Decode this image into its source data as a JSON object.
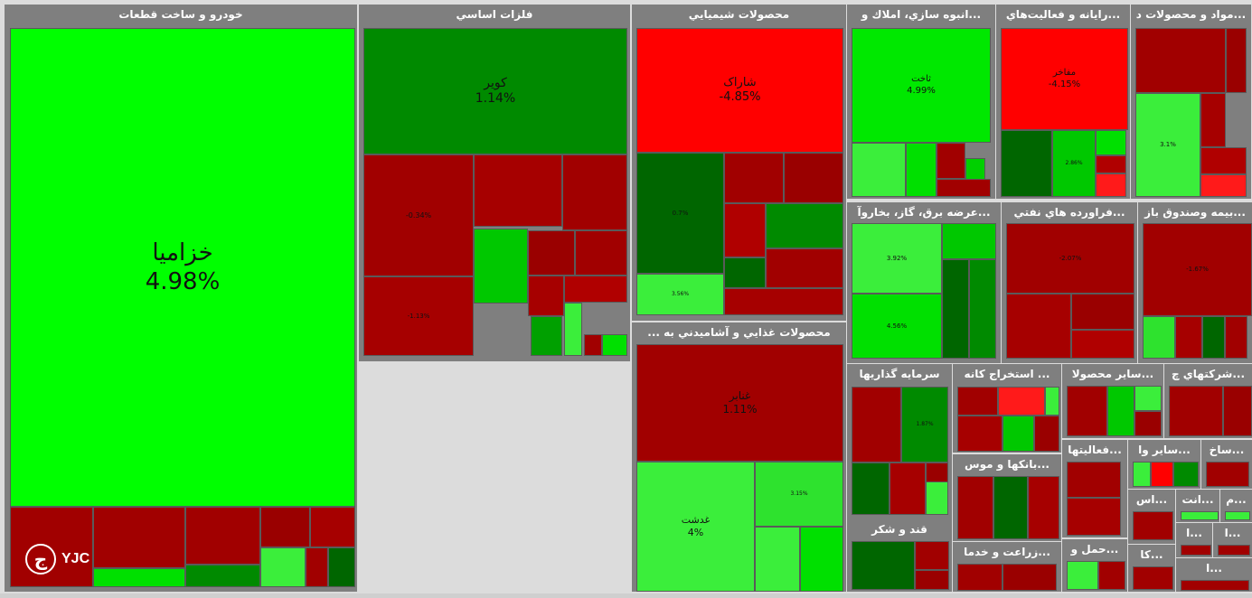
{
  "chart_data": {
    "type": "treemap",
    "sectors": [
      {
        "title": "خودرو و ساخت قطعات",
        "tiles": [
          {
            "name": "خزامیا",
            "value": 4.98,
            "color": "#00ff00"
          },
          {
            "name": "",
            "value": null,
            "color": "#a10000"
          },
          {
            "name": "",
            "value": null,
            "color": "#a10000"
          },
          {
            "name": "",
            "value": null,
            "color": "#a10000"
          },
          {
            "name": "",
            "value": null,
            "color": "#9a0000"
          },
          {
            "name": "",
            "value": null,
            "color": "#a60000"
          },
          {
            "name": "",
            "value": null,
            "color": "#00e000"
          },
          {
            "name": "",
            "value": null,
            "color": "#008a00"
          },
          {
            "name": "",
            "value": null,
            "color": "#3bee3b"
          },
          {
            "name": "",
            "value": null,
            "color": "#a10000"
          },
          {
            "name": "",
            "value": null,
            "color": "#006600"
          }
        ]
      },
      {
        "title": "فلزات اساسي",
        "tiles": [
          {
            "name": "کویر",
            "value": 1.14,
            "color": "#008a00"
          },
          {
            "name": "",
            "value": -0.34,
            "color": "#a10000"
          },
          {
            "name": "",
            "value": null,
            "color": "#a60000"
          },
          {
            "name": "",
            "value": null,
            "color": "#a10000"
          },
          {
            "name": "",
            "value": -1.13,
            "color": "#a60000"
          },
          {
            "name": "",
            "value": null,
            "color": "#00c800"
          },
          {
            "name": "",
            "value": null,
            "color": "#9a0000"
          },
          {
            "name": "",
            "value": null,
            "color": "#a10000"
          },
          {
            "name": "",
            "value": null,
            "color": "#a60000"
          },
          {
            "name": "",
            "value": null,
            "color": "#b00000"
          },
          {
            "name": "",
            "value": null,
            "color": "#00a000"
          },
          {
            "name": "",
            "value": null,
            "color": "#3bee3b"
          },
          {
            "name": "",
            "value": null,
            "color": "#a10000"
          },
          {
            "name": "",
            "value": null,
            "color": "#00e000"
          }
        ]
      },
      {
        "title": "محصولات شيميايي",
        "tiles": [
          {
            "name": "شاراک",
            "value": -4.85,
            "color": "#ff0000"
          },
          {
            "name": "",
            "value": 0.7,
            "color": "#006600"
          },
          {
            "name": "",
            "value": 3.56,
            "color": "#3bee3b"
          },
          {
            "name": "",
            "value": null,
            "color": "#a10000"
          },
          {
            "name": "",
            "value": null,
            "color": "#9a0000"
          },
          {
            "name": "",
            "value": null,
            "color": "#b00000"
          },
          {
            "name": "",
            "value": null,
            "color": "#006600"
          },
          {
            "name": "",
            "value": null,
            "color": "#008a00"
          },
          {
            "name": "",
            "value": null,
            "color": "#a10000"
          },
          {
            "name": "",
            "value": null,
            "color": "#a60000"
          }
        ]
      },
      {
        "title": "محصولات غذايي و آشاميدني به ...",
        "tiles": [
          {
            "name": "غنابر",
            "value": 1.11,
            "color": "#a10000"
          },
          {
            "name": "غدشت",
            "value": 4,
            "color": "#3bee3b"
          },
          {
            "name": "",
            "value": 3.15,
            "color": "#2ee22e"
          },
          {
            "name": "",
            "value": null,
            "color": "#3bee3b"
          },
          {
            "name": "",
            "value": null,
            "color": "#00e000"
          }
        ]
      },
      {
        "title": "...انبوه سازي، املاك و",
        "tiles": [
          {
            "name": "ثاخت",
            "value": 4.99,
            "color": "#00e800"
          },
          {
            "name": "",
            "value": null,
            "color": "#3bee3b"
          },
          {
            "name": "",
            "value": null,
            "color": "#00e000"
          },
          {
            "name": "",
            "value": null,
            "color": "#a10000"
          },
          {
            "name": "",
            "value": null,
            "color": "#00d000"
          },
          {
            "name": "",
            "value": null,
            "color": "#a10000"
          }
        ]
      },
      {
        "title": "...رايانه و فعاليت‌هاي",
        "tiles": [
          {
            "name": "مفاخر",
            "value": -4.15,
            "color": "#ff0000"
          },
          {
            "name": "",
            "value": null,
            "color": "#006600"
          },
          {
            "name": "",
            "value": 2.86,
            "color": "#00c800"
          },
          {
            "name": "",
            "value": null,
            "color": "#00e000"
          },
          {
            "name": "",
            "value": null,
            "color": "#b00000"
          },
          {
            "name": "",
            "value": null,
            "color": "#ff1a1a"
          }
        ]
      },
      {
        "title": "...مواد و محصولات د",
        "tiles": [
          {
            "name": "",
            "value": null,
            "color": "#a10000"
          },
          {
            "name": "",
            "value": 3.1,
            "color": "#3bee3b"
          },
          {
            "name": "",
            "value": null,
            "color": "#a60000"
          },
          {
            "name": "",
            "value": null,
            "color": "#9a0000"
          },
          {
            "name": "",
            "value": null,
            "color": "#b00000"
          },
          {
            "name": "",
            "value": null,
            "color": "#ff1a1a"
          }
        ]
      },
      {
        "title": "...عرضه برق، گاز، بخاروآ",
        "tiles": [
          {
            "name": "",
            "value": 3.92,
            "color": "#3bee3b"
          },
          {
            "name": "",
            "value": 4.56,
            "color": "#00e000"
          },
          {
            "name": "",
            "value": null,
            "color": "#00c800"
          },
          {
            "name": "",
            "value": null,
            "color": "#006600"
          },
          {
            "name": "",
            "value": null,
            "color": "#008a00"
          }
        ]
      },
      {
        "title": "...فراورده هاي نفتي",
        "tiles": [
          {
            "name": "",
            "value": -2.07,
            "color": "#a10000"
          },
          {
            "name": "",
            "value": null,
            "color": "#a60000"
          },
          {
            "name": "",
            "value": null,
            "color": "#9a0000"
          },
          {
            "name": "",
            "value": null,
            "color": "#b00000"
          }
        ]
      },
      {
        "title": "...بيمه وصندوق باز",
        "tiles": [
          {
            "name": "",
            "value": -1.67,
            "color": "#a10000"
          },
          {
            "name": "",
            "value": null,
            "color": "#2ee22e"
          },
          {
            "name": "",
            "value": null,
            "color": "#a60000"
          },
          {
            "name": "",
            "value": null,
            "color": "#006600"
          },
          {
            "name": "",
            "value": null,
            "color": "#a10000"
          }
        ]
      },
      {
        "title": "سرمايه گذاريها",
        "tiles": [
          {
            "name": "",
            "value": null,
            "color": "#a10000"
          },
          {
            "name": "",
            "value": 1.87,
            "color": "#008a00"
          },
          {
            "name": "",
            "value": null,
            "color": "#006600"
          },
          {
            "name": "",
            "value": null,
            "color": "#a60000"
          },
          {
            "name": "",
            "value": null,
            "color": "#9a0000"
          },
          {
            "name": "",
            "value": null,
            "color": "#3bee3b"
          }
        ]
      },
      {
        "title": "... استخراج كانه",
        "tiles": [
          {
            "name": "",
            "value": null,
            "color": "#a10000"
          },
          {
            "name": "",
            "value": null,
            "color": "#ff1a1a"
          },
          {
            "name": "",
            "value": null,
            "color": "#3bee3b"
          },
          {
            "name": "",
            "value": null,
            "color": "#a60000"
          },
          {
            "name": "",
            "value": null,
            "color": "#00c800"
          },
          {
            "name": "",
            "value": null,
            "color": "#9a0000"
          }
        ]
      },
      {
        "title": "...ساير محصولا",
        "tiles": [
          {
            "name": "",
            "value": null,
            "color": "#a10000"
          },
          {
            "name": "",
            "value": null,
            "color": "#00c800"
          },
          {
            "name": "",
            "value": null,
            "color": "#3bee3b"
          },
          {
            "name": "",
            "value": null,
            "color": "#9a0000"
          }
        ]
      },
      {
        "title": "...شركتهاي چ",
        "tiles": [
          {
            "name": "",
            "value": null,
            "color": "#a10000"
          },
          {
            "name": "",
            "value": null,
            "color": "#9a0000"
          }
        ]
      },
      {
        "title": "...فعاليتها",
        "tiles": [
          {
            "name": "",
            "value": null,
            "color": "#a10000"
          },
          {
            "name": "",
            "value": null,
            "color": "#a60000"
          }
        ]
      },
      {
        "title": "...ساير وا",
        "tiles": [
          {
            "name": "",
            "value": null,
            "color": "#3bee3b"
          },
          {
            "name": "",
            "value": null,
            "color": "#ff0000"
          },
          {
            "name": "",
            "value": null,
            "color": "#008a00"
          }
        ]
      },
      {
        "title": "...ساخ",
        "tiles": [
          {
            "name": "",
            "value": null,
            "color": "#a10000"
          }
        ]
      },
      {
        "title": "...بانكها و موس",
        "tiles": [
          {
            "name": "",
            "value": null,
            "color": "#a10000"
          },
          {
            "name": "",
            "value": null,
            "color": "#006600"
          },
          {
            "name": "",
            "value": null,
            "color": "#a60000"
          }
        ]
      },
      {
        "title": "...اس",
        "tiles": [
          {
            "name": "",
            "value": null,
            "color": "#a10000"
          }
        ]
      },
      {
        "title": "...انت",
        "tiles": [
          {
            "name": "",
            "value": null,
            "color": "#3bee3b"
          }
        ]
      },
      {
        "title": "...م",
        "tiles": [
          {
            "name": "",
            "value": null,
            "color": "#3bee3b"
          }
        ]
      },
      {
        "title": "قند و شكر",
        "tiles": [
          {
            "name": "",
            "value": null,
            "color": "#006600"
          },
          {
            "name": "",
            "value": null,
            "color": "#a10000"
          },
          {
            "name": "",
            "value": null,
            "color": "#9a0000"
          }
        ]
      },
      {
        "title": "...زراعت و خدما",
        "tiles": [
          {
            "name": "",
            "value": null,
            "color": "#a10000"
          },
          {
            "name": "",
            "value": null,
            "color": "#9a0000"
          }
        ]
      },
      {
        "title": "...حمل و",
        "tiles": [
          {
            "name": "",
            "value": null,
            "color": "#3bee3b"
          },
          {
            "name": "",
            "value": null,
            "color": "#a10000"
          }
        ]
      },
      {
        "title": "...كا",
        "tiles": [
          {
            "name": "",
            "value": null,
            "color": "#a10000"
          }
        ]
      },
      {
        "title": "...ا",
        "tiles": [
          {
            "name": "",
            "value": null,
            "color": "#a10000"
          }
        ]
      },
      {
        "title": "...ا",
        "tiles": [
          {
            "name": "",
            "value": null,
            "color": "#a10000"
          }
        ]
      },
      {
        "title": "...ا",
        "tiles": [
          {
            "name": "",
            "value": null,
            "color": "#a10000"
          }
        ]
      }
    ]
  },
  "logo": {
    "text": "YJC",
    "mark": "ج"
  }
}
